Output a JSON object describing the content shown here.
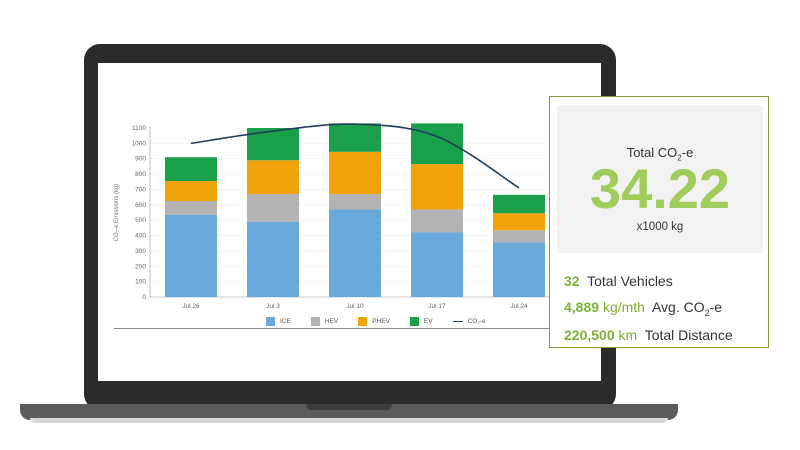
{
  "kpi": {
    "title_prefix": "Total CO",
    "title_sub": "2",
    "title_suffix": "-e",
    "value": "34.22",
    "unit": "x1000 kg"
  },
  "stats": {
    "vehicles": {
      "value": "32",
      "label": "Total Vehicles"
    },
    "avg": {
      "value": "4,889",
      "unit": "kg/mth",
      "label_prefix": "Avg. CO",
      "label_sub": "2",
      "label_suffix": "-e"
    },
    "distance": {
      "value": "220,500",
      "unit": "km",
      "label": "Total Distance"
    }
  },
  "legend": [
    {
      "label": "ICE",
      "color": "#6aa9d9"
    },
    {
      "label": "HEV",
      "color": "#b3b3b3"
    },
    {
      "label": "PHEV",
      "color": "#f0a30a"
    },
    {
      "label": "EV",
      "color": "#1aa04a"
    },
    {
      "label": "CO₂-e",
      "color": "#213e5b"
    }
  ],
  "chart_data": {
    "type": "bar",
    "stacked": true,
    "categories": [
      "Jul 26",
      "Jul 3",
      "Jul 10",
      "Jul 17",
      "Jul 24"
    ],
    "series": [
      {
        "name": "ICE",
        "color": "#6aa9d9",
        "values": [
          535,
          490,
          570,
          420,
          355
        ]
      },
      {
        "name": "HEV",
        "color": "#b3b3b3",
        "values": [
          90,
          180,
          100,
          150,
          80
        ]
      },
      {
        "name": "PHEV",
        "color": "#f0a30a",
        "values": [
          130,
          220,
          275,
          295,
          110
        ]
      },
      {
        "name": "EV",
        "color": "#1aa04a",
        "values": [
          155,
          210,
          185,
          265,
          120
        ]
      }
    ],
    "line": {
      "name": "CO₂-e",
      "color": "#213e5b",
      "values": [
        1000,
        1080,
        1125,
        1045,
        710
      ]
    },
    "ylabel": "CO₂-e Emissions (kg)",
    "ylim": [
      0,
      1100
    ],
    "yticks": [
      0,
      100,
      200,
      300,
      400,
      500,
      600,
      700,
      800,
      900,
      1000,
      1100
    ],
    "grid": true,
    "legend_position": "bottom"
  }
}
